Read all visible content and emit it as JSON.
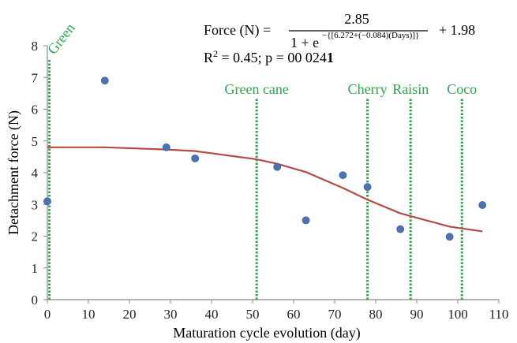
{
  "chart_data": {
    "type": "scatter",
    "xlabel": "Maturation cycle evolution (day)",
    "ylabel": "Detachment force (N)",
    "xlim": [
      0,
      110
    ],
    "ylim": [
      0,
      8
    ],
    "x_ticks": [
      "0",
      "10",
      "20",
      "30",
      "40",
      "50",
      "60",
      "70",
      "80",
      "90",
      "100",
      "110"
    ],
    "y_ticks": [
      "0",
      "1",
      "2",
      "3",
      "4",
      "5",
      "6",
      "7",
      "8"
    ],
    "grid": false,
    "points": {
      "x": [
        0,
        14,
        29,
        36,
        56,
        63,
        72,
        78,
        86,
        98,
        106
      ],
      "y": [
        3.1,
        6.9,
        4.8,
        4.45,
        4.18,
        2.5,
        3.92,
        3.55,
        2.22,
        1.98,
        2.98
      ]
    },
    "fit_line": {
      "x": [
        0,
        14,
        29,
        36,
        51,
        56,
        63,
        72,
        78,
        86,
        98,
        106
      ],
      "y": [
        4.8,
        4.8,
        4.73,
        4.68,
        4.42,
        4.28,
        4.02,
        3.52,
        3.15,
        2.72,
        2.3,
        2.15
      ]
    },
    "stages": [
      {
        "name": "Green",
        "x": 0.5
      },
      {
        "name": "Green cane",
        "x": 51
      },
      {
        "name": "Cherry",
        "x": 78
      },
      {
        "name": "Raisin",
        "x": 88.5
      },
      {
        "name": "Coco",
        "x": 101
      }
    ],
    "annotation": {
      "lhs": "Force (N) =",
      "numerator": "2.85",
      "denominator_base": "1 + e",
      "exponent": "−{[6.272+(−0.084)(Days)]}",
      "tail": "+ 1.98",
      "stats": "R",
      "stats_sup": "2",
      "stats_rest": " = 0.45; p = 00 024",
      "stats_bold": "1"
    },
    "colors": {
      "points": "#4a72b5",
      "fit": "#b84a45",
      "stage_lines": "#2aa84a",
      "axes": "#888888"
    }
  }
}
